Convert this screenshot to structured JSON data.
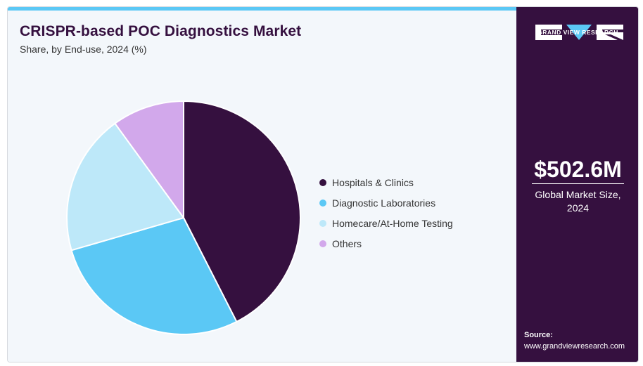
{
  "header": {
    "title": "CRISPR-based POC Diagnostics Market",
    "subtitle": "Share, by End-use, 2024 (%)"
  },
  "chart_data": {
    "type": "pie",
    "categories": [
      "Hospitals & Clinics",
      "Diagnostic Laboratories",
      "Homecare/At-Home Testing",
      "Others"
    ],
    "values": [
      42.5,
      28.0,
      19.5,
      10.0
    ],
    "colors": [
      "#35103f",
      "#5bc8f5",
      "#bde8f9",
      "#d2a8eb"
    ],
    "legend_position": "right",
    "start_angle": "top, clockwise"
  },
  "side_panel": {
    "brand": "GRAND VIEW RESEARCH",
    "market_value": "$502.6M",
    "market_caption": "Global Market Size, 2024",
    "source_label": "Source:",
    "source_url": "www.grandviewresearch.com"
  }
}
